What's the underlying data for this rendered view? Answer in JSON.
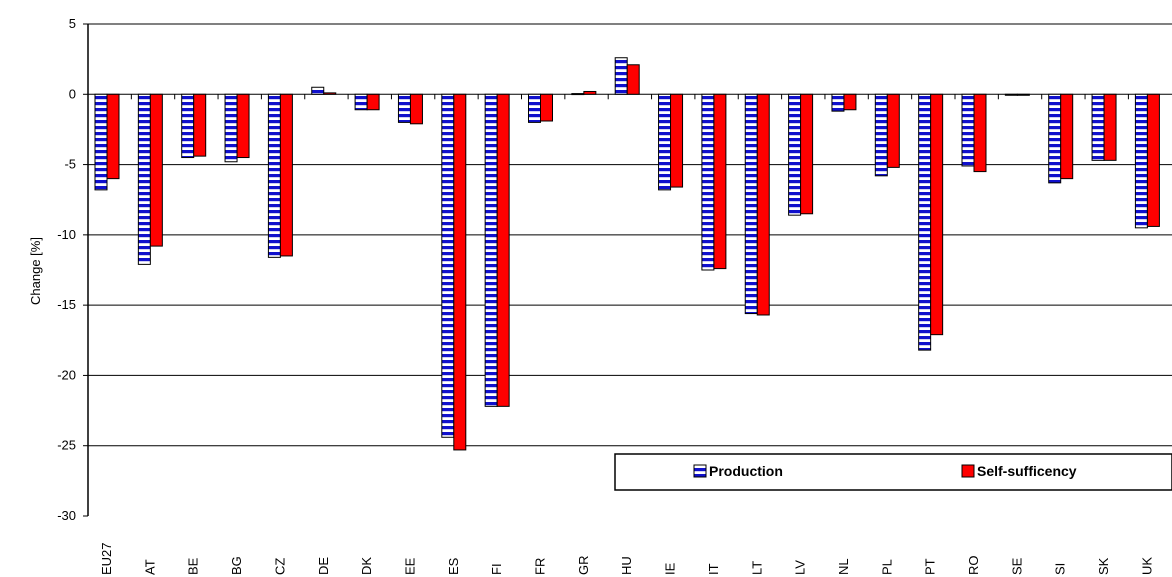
{
  "chart_data": {
    "type": "bar",
    "ylabel": "Change [%]",
    "xlabel": "",
    "ylim": [
      -30,
      5
    ],
    "yticks": [
      5,
      0,
      -5,
      -10,
      -15,
      -20,
      -25,
      -30
    ],
    "grid": true,
    "legend_position": "bottom-right",
    "categories": [
      "EU27",
      "AT",
      "BE",
      "BG",
      "CZ",
      "DE",
      "DK",
      "EE",
      "ES",
      "FI",
      "FR",
      "GR",
      "HU",
      "IE",
      "IT",
      "LT",
      "LV",
      "NL",
      "PL",
      "PT",
      "RO",
      "SE",
      "SI",
      "SK",
      "UK"
    ],
    "series": [
      {
        "name": "Production",
        "pattern": "blue-white-horizontal-stripes",
        "color": "#1010cc",
        "values": [
          -6.8,
          -12.1,
          -4.5,
          -4.8,
          -11.6,
          0.5,
          -1.1,
          -2.0,
          -24.4,
          -22.2,
          -2.0,
          0.05,
          2.6,
          -6.8,
          -12.5,
          -15.6,
          -8.6,
          -1.2,
          -5.8,
          -18.2,
          -5.1,
          0.0,
          -6.3,
          -4.7,
          -9.5
        ]
      },
      {
        "name": "Self-sufficency",
        "pattern": "solid",
        "color": "#ff0000",
        "values": [
          -6.0,
          -10.8,
          -4.4,
          -4.5,
          -11.5,
          0.1,
          -1.1,
          -2.1,
          -25.3,
          -22.2,
          -1.9,
          0.2,
          2.1,
          -6.6,
          -12.4,
          -15.7,
          -8.5,
          -1.1,
          -5.2,
          -17.1,
          -5.5,
          0.0,
          -6.0,
          -4.7,
          -9.4
        ]
      }
    ]
  }
}
